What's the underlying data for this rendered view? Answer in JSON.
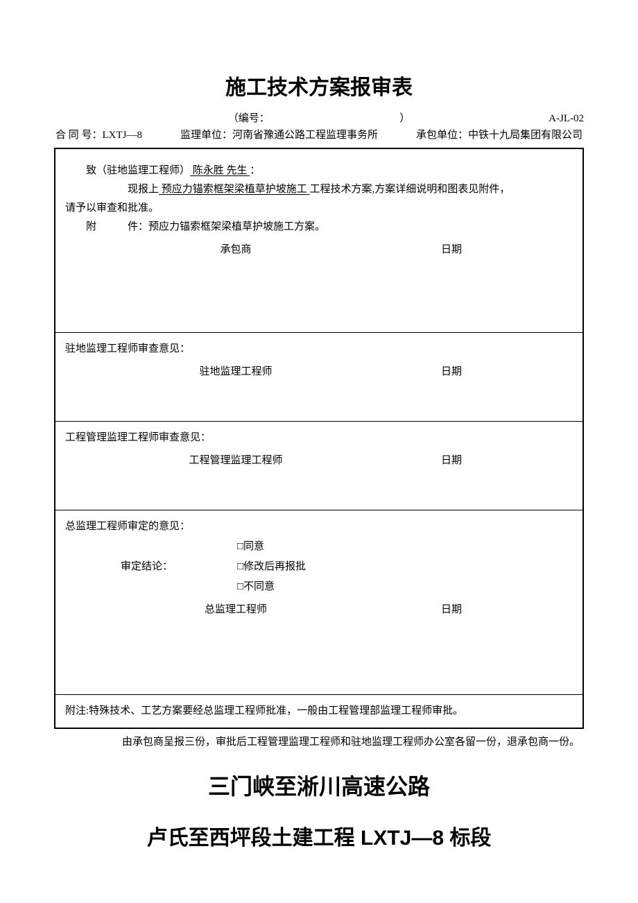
{
  "title": "施工技术方案报审表",
  "ref_center": "（编号：　　　　　　　　　　　　　）",
  "ref_code": "A-JL-02",
  "meta": {
    "contract": "合  同  号：LXTJ—8",
    "supervisor": "监理单位：河南省豫通公路工程监理事务所",
    "contractor": "承包单位：中铁十九局集团有限公司"
  },
  "top": {
    "to_prefix": "致（驻地监理工程师）",
    "to_name": "  陈永胜  先生  ",
    "to_suffix": "：",
    "line2_prefix": "现报上",
    "line2_item": "  预应力锚索框架梁植草护坡施工  ",
    "line2_suffix": "工程技术方案,方案详细说明和图表见附件，",
    "line3": "请予以审查和批准。",
    "attach": "附　　　件：预应力锚索框架梁植草护坡施工方案。",
    "sig_role": "承包商",
    "sig_date": "日期"
  },
  "review1": {
    "head": "驻地监理工程师审查意见：",
    "sig_role": "驻地监理工程师",
    "sig_date": "日期"
  },
  "review2": {
    "head": "工程管理监理工程师审查意见：",
    "sig_role": "工程管理监理工程师",
    "sig_date": "日期"
  },
  "final": {
    "head": "总监理工程师审定的意见：",
    "decision_label": "审定结论：",
    "opt1": "□同意",
    "opt2": "□修改后再报批",
    "opt3": "□不同意",
    "sig_role": "总监理工程师",
    "sig_date": "日期"
  },
  "note": "附注:特殊技术、工艺方案要经总监理工程师批准，一般由工程管理部监理工程师审批。",
  "footnote": "由承包商呈报三份，审批后工程管理监理工程师和驻地监理工程师办公室各留一份，退承包商一份。",
  "heading1": "三门峡至淅川高速公路",
  "heading2": "卢氏至西坪段土建工程 LXTJ—8 标段"
}
